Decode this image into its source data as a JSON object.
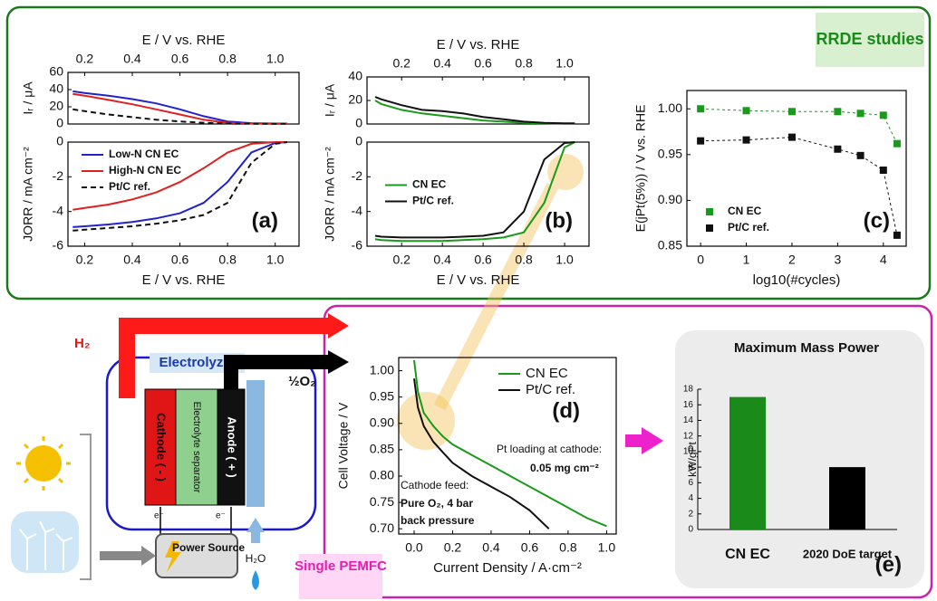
{
  "chart_data": [
    {
      "type": "line",
      "xlabel": "E / V vs. RHE",
      "ylabel": "Iᵣ / μA",
      "x": [
        0.15,
        0.2,
        0.3,
        0.4,
        0.5,
        0.6,
        0.7,
        0.8,
        0.9,
        1.0,
        1.05
      ],
      "xlim": [
        0.13,
        1.1
      ],
      "xticks": [
        0.2,
        0.4,
        0.6,
        0.8,
        {
          "value": 1,
          "label": "1.0"
        }
      ],
      "ylim": [
        0,
        60
      ],
      "yticks": [
        0,
        20,
        40,
        60
      ],
      "series": [
        {
          "color": "#2222cc",
          "values": [
            38,
            36,
            33,
            29,
            24,
            17,
            9,
            3,
            1,
            0.5,
            0.5
          ]
        },
        {
          "color": "#e02020",
          "values": [
            35,
            33,
            28,
            23,
            17,
            11,
            5,
            1.5,
            0.5,
            0.3,
            0.3
          ]
        },
        {
          "color": "#111111",
          "dash": true,
          "values": [
            17,
            15,
            11,
            8,
            5,
            3,
            1.5,
            0.5,
            0.3,
            0.3,
            0.3
          ]
        }
      ]
    },
    {
      "type": "line",
      "xlabel": "E / V vs. RHE",
      "ylabel": "JORR / mA cm⁻²",
      "panel_label": "(a)",
      "legend": "upper left",
      "x": [
        0.15,
        0.2,
        0.3,
        0.4,
        0.5,
        0.6,
        0.7,
        0.8,
        0.9,
        1.0,
        1.05
      ],
      "xlim": [
        0.13,
        1.1
      ],
      "xticks": [
        0.2,
        0.4,
        0.6,
        0.8,
        {
          "value": 1,
          "label": "1.0"
        }
      ],
      "ylim": [
        -6,
        0
      ],
      "yticks": [
        -6,
        -4,
        -2,
        0
      ],
      "series": [
        {
          "name": "Low-N CN EC",
          "color": "#2222cc",
          "values": [
            -4.9,
            -4.85,
            -4.75,
            -4.6,
            -4.4,
            -4.1,
            -3.5,
            -2.3,
            -0.6,
            -0.05,
            0
          ]
        },
        {
          "name": "High-N CN EC",
          "color": "#e02020",
          "values": [
            -3.9,
            -3.8,
            -3.6,
            -3.3,
            -2.9,
            -2.3,
            -1.5,
            -0.6,
            -0.1,
            0,
            0
          ]
        },
        {
          "name": "Pt/C ref.",
          "color": "#111111",
          "dash": true,
          "values": [
            -5.1,
            -5.05,
            -4.95,
            -4.85,
            -4.7,
            -4.5,
            -4.2,
            -3.5,
            -1.2,
            -0.1,
            0
          ]
        }
      ]
    },
    {
      "type": "line",
      "xlabel": "E / V vs. RHE",
      "ylabel": "Iᵣ / μA",
      "x": [
        0.07,
        0.1,
        0.2,
        0.3,
        0.4,
        0.5,
        0.6,
        0.7,
        0.8,
        0.9,
        1.0,
        1.05
      ],
      "xlim": [
        0.03,
        1.12
      ],
      "xticks": [
        0.2,
        0.4,
        0.6,
        0.8,
        {
          "value": 1,
          "label": "1.0"
        }
      ],
      "ylim": [
        0,
        40
      ],
      "yticks": [
        0,
        20,
        40
      ],
      "series": [
        {
          "color": "#1a9a1a",
          "values": [
            20,
            17,
            12,
            9,
            7,
            5,
            3,
            2,
            1,
            0.5,
            0.3,
            0.3
          ]
        },
        {
          "color": "#111111",
          "values": [
            23,
            21,
            16,
            12,
            11,
            9,
            6,
            4,
            2,
            1,
            0.5,
            0.5
          ]
        }
      ]
    },
    {
      "type": "line",
      "xlabel": "E / V vs. RHE",
      "ylabel": "JORR / mA cm⁻²",
      "panel_label": "(b)",
      "legend": "center left",
      "x": [
        0.07,
        0.1,
        0.2,
        0.3,
        0.4,
        0.5,
        0.6,
        0.7,
        0.8,
        0.9,
        1.0,
        1.05
      ],
      "xlim": [
        0.03,
        1.12
      ],
      "xticks": [
        0.2,
        0.4,
        0.6,
        0.8,
        {
          "value": 1,
          "label": "1.0"
        }
      ],
      "ylim": [
        -6,
        0
      ],
      "yticks": [
        -6,
        -4,
        -2,
        0
      ],
      "series": [
        {
          "name": "CN EC",
          "color": "#1a9a1a",
          "values": [
            -5.6,
            -5.65,
            -5.7,
            -5.7,
            -5.7,
            -5.65,
            -5.6,
            -5.5,
            -5.2,
            -3.5,
            -0.3,
            0
          ]
        },
        {
          "name": "Pt/C ref.",
          "color": "#111111",
          "values": [
            -5.4,
            -5.45,
            -5.5,
            -5.5,
            -5.5,
            -5.45,
            -5.4,
            -5.2,
            -4,
            -1,
            -0.05,
            0
          ]
        }
      ]
    },
    {
      "type": "scatter",
      "xlabel": "log10(#cycles)",
      "ylabel": "E(jPt(5%)) / V vs. RHE",
      "panel_label": "(c)",
      "legend": "lower left",
      "x": [
        0,
        1,
        2,
        3,
        3.5,
        4,
        4.3
      ],
      "xlim": [
        -0.3,
        4.5
      ],
      "xticks": [
        0,
        1,
        2,
        3,
        4
      ],
      "ylim": [
        0.85,
        1.02
      ],
      "yticks": [
        0.85,
        {
          "value": 0.9,
          "label": "0.90"
        },
        0.95,
        {
          "value": 1,
          "label": "1.00"
        }
      ],
      "series": [
        {
          "name": "CN EC",
          "color": "#1a9a1a",
          "values": [
            1.0,
            0.998,
            0.997,
            0.997,
            0.995,
            0.993,
            0.962
          ]
        },
        {
          "name": "Pt/C ref.",
          "color": "#111111",
          "values": [
            0.965,
            0.966,
            0.969,
            0.956,
            0.949,
            0.933,
            0.862
          ]
        }
      ]
    },
    {
      "type": "line",
      "xlabel": "Current Density / A·cm⁻²",
      "ylabel": "Cell Voltage / V",
      "panel_label": "(d)",
      "legend": "upper right",
      "x": [
        0,
        0.02,
        0.05,
        0.1,
        0.15,
        0.2,
        0.3,
        0.4,
        0.5,
        0.6,
        0.7,
        0.8,
        0.9,
        1.0
      ],
      "xlim": [
        -0.08,
        1.05
      ],
      "xticks": [
        {
          "value": 0,
          "label": "0.0"
        },
        0.2,
        0.4,
        0.6,
        0.8,
        {
          "value": 1,
          "label": "1.0"
        }
      ],
      "ylim": [
        0.69,
        1.025
      ],
      "yticks": [
        {
          "value": 0.7,
          "label": "0.70"
        },
        0.75,
        {
          "value": 0.8,
          "label": "0.80"
        },
        0.85,
        {
          "value": 0.9,
          "label": "0.90"
        },
        0.95,
        {
          "value": 1,
          "label": "1.00"
        }
      ],
      "series": [
        {
          "name": "CN EC",
          "color": "#1a9a1a",
          "values": [
            1.02,
            0.96,
            0.92,
            0.895,
            0.875,
            0.86,
            0.84,
            0.82,
            0.8,
            0.78,
            0.76,
            0.74,
            0.72,
            0.705
          ]
        },
        {
          "name": "Pt/C ref.",
          "color": "#111111",
          "values": [
            0.985,
            0.93,
            0.895,
            0.865,
            0.845,
            0.825,
            0.8,
            0.78,
            0.76,
            0.735,
            0.7,
            null,
            null,
            null
          ]
        }
      ],
      "annotations": [
        "Pt loading at cathode:",
        "0.05 mg cm⁻²",
        "Cathode feed:",
        "Pure O₂, 4 bar",
        "back pressure"
      ]
    },
    {
      "type": "bar",
      "title": "Maximum Mass Power",
      "ylabel": "kW/gPt",
      "panel_label": "(e)",
      "categories": [
        "CN EC",
        "2020 DoE target"
      ],
      "values": [
        17,
        8
      ],
      "colors": [
        "#1a8a1a",
        "#000000"
      ],
      "ylim": [
        0,
        18
      ],
      "yticks": [
        0,
        2,
        4,
        6,
        8,
        10,
        12,
        14,
        16,
        18
      ]
    }
  ],
  "diagram": {
    "rrde": "RRDE studies",
    "h2": "H₂",
    "electrolyzer": "Electrolyzer",
    "o2": "½O₂",
    "cathode": "Cathode ( - )",
    "electrolyte": "Electrolyte separator",
    "anode": "Anode ( + )",
    "electron_left": "e⁻",
    "electron_right": "e⁻",
    "power_source": "Power Source",
    "water": "H₂O",
    "pemfc": "Single PEMFC"
  }
}
